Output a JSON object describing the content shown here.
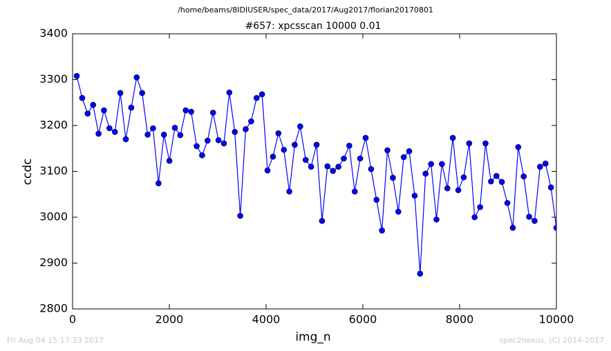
{
  "chart_data": {
    "type": "line",
    "suptitle": "/home/beams/8IDIUSER/spec_data/2017/Aug2017/florian20170801",
    "title": "#657: xpcsscan 10000 0.01",
    "x_label": "img_n",
    "y_label": "ccdc",
    "footer_left": "Fri Aug 04 15:17:33 2017",
    "footer_right": "spec2nexus, (C) 2014-2017",
    "color": "#0000ff",
    "marker": true,
    "x": [
      86,
      199,
      311,
      424,
      537,
      649,
      762,
      875,
      987,
      1100,
      1213,
      1325,
      1438,
      1551,
      1663,
      1776,
      1889,
      2001,
      2114,
      2227,
      2339,
      2452,
      2565,
      2677,
      2790,
      2903,
      3015,
      3128,
      3240,
      3353,
      3466,
      3578,
      3691,
      3804,
      3916,
      4029,
      4142,
      4254,
      4367,
      4480,
      4592,
      4705,
      4818,
      4930,
      5043,
      5156,
      5268,
      5381,
      5494,
      5606,
      5719,
      5832,
      5944,
      6057,
      6170,
      6282,
      6395,
      6507,
      6620,
      6733,
      6845,
      6958,
      7071,
      7183,
      7296,
      7409,
      7521,
      7634,
      7747,
      7859,
      7972,
      8085,
      8197,
      8310,
      8423,
      8535,
      8648,
      8761,
      8873,
      8986,
      9099,
      9211,
      9324,
      9437,
      9549,
      9662,
      9775,
      9887,
      10000
    ],
    "values": [
      3308,
      3260,
      3226,
      3245,
      3182,
      3233,
      3194,
      3186,
      3271,
      3170,
      3239,
      3305,
      3271,
      3180,
      3194,
      3074,
      3180,
      3123,
      3195,
      3179,
      3233,
      3230,
      3155,
      3135,
      3167,
      3228,
      3168,
      3161,
      3272,
      3186,
      3003,
      3192,
      3209,
      3260,
      3268,
      3102,
      3132,
      3183,
      3147,
      3056,
      3158,
      3198,
      3125,
      3110,
      3158,
      2992,
      3111,
      3101,
      3110,
      3128,
      3156,
      3056,
      3128,
      3173,
      3105,
      3038,
      2971,
      3146,
      3086,
      3012,
      3131,
      3144,
      3047,
      2877,
      3095,
      3116,
      2995,
      3116,
      3063,
      3173,
      3059,
      3087,
      3161,
      3000,
      3022,
      3161,
      3078,
      3090,
      3077,
      3031,
      2977,
      3153,
      3089,
      3001,
      2992,
      3110,
      3117,
      3065,
      2977
    ],
    "xlim": [
      0,
      10000
    ],
    "xticks": [
      0,
      2000,
      4000,
      6000,
      8000,
      10000
    ],
    "ylim": [
      2800,
      3400
    ],
    "yticks": [
      2800,
      2900,
      3000,
      3100,
      3200,
      3300,
      3400
    ]
  }
}
